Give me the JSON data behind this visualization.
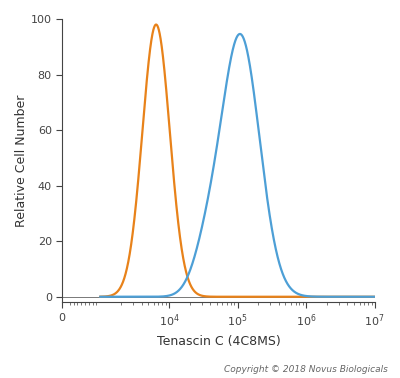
{
  "title": "",
  "xlabel": "Tenascin C (4C8MS)",
  "ylabel": "Relative Cell Number",
  "copyright": "Copyright © 2018 Novus Biologicals",
  "ylim": [
    -2,
    100
  ],
  "orange_peak_x": 6500,
  "orange_peak_y": 98,
  "orange_sigma": 0.2,
  "blue_peak_x": 110000,
  "blue_peak_y": 94,
  "blue_sigma": 0.28,
  "blue_shoulder_x": 35000,
  "blue_shoulder_y": 13,
  "blue_shoulder_sigma": 0.2,
  "orange_color": "#E8821A",
  "blue_color": "#4D9FD6",
  "bg_color": "#FFFFFF",
  "tick_color": "#444444",
  "label_color": "#333333",
  "copyright_color": "#666666",
  "linewidth": 1.6,
  "linthresh": 1000,
  "x_max": 10000000.0,
  "x_min": 0
}
